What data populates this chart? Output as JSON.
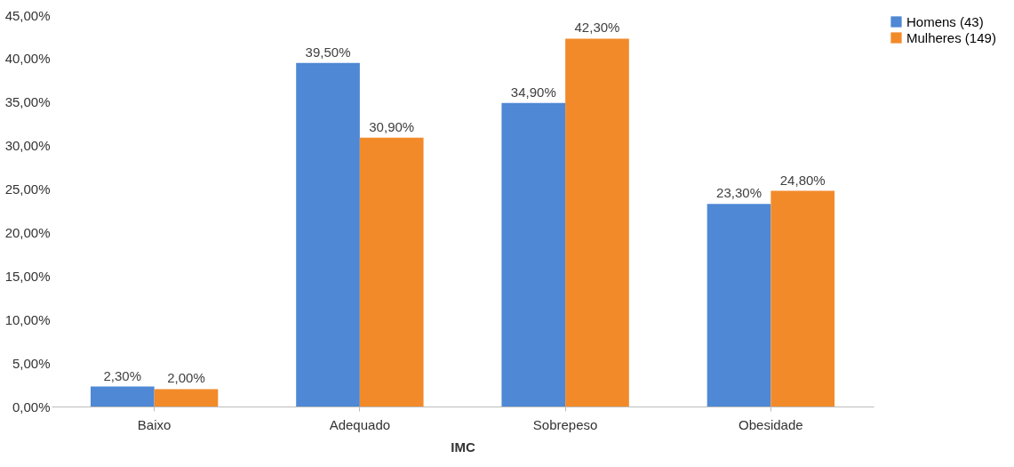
{
  "chart_data": {
    "type": "bar",
    "xlabel": "IMC",
    "categories": [
      "Baixo",
      "Adequado",
      "Sobrepeso",
      "Obesidade"
    ],
    "series": [
      {
        "name": "Homens (43)",
        "color": "#4f88d4",
        "values": [
          2.3,
          39.5,
          34.9,
          23.3
        ],
        "value_labels": [
          "2,30%",
          "39,50%",
          "34,90%",
          "23,30%"
        ]
      },
      {
        "name": "Mulheres (149)",
        "color": "#f28a2a",
        "values": [
          2.0,
          30.9,
          42.3,
          24.8
        ],
        "value_labels": [
          "2,00%",
          "30,90%",
          "42,30%",
          "24,80%"
        ]
      }
    ],
    "ylim": [
      0,
      45
    ],
    "yticks": [
      {
        "value": 0,
        "label": "0,00%"
      },
      {
        "value": 5,
        "label": "5,00%"
      },
      {
        "value": 10,
        "label": "10,00%"
      },
      {
        "value": 15,
        "label": "15,00%"
      },
      {
        "value": 20,
        "label": "20,00%"
      },
      {
        "value": 25,
        "label": "25,00%"
      },
      {
        "value": 30,
        "label": "30,00%"
      },
      {
        "value": 35,
        "label": "35,00%"
      },
      {
        "value": 40,
        "label": "40,00%"
      },
      {
        "value": 45,
        "label": "45,00%"
      }
    ],
    "grid": false,
    "legend": "right"
  }
}
